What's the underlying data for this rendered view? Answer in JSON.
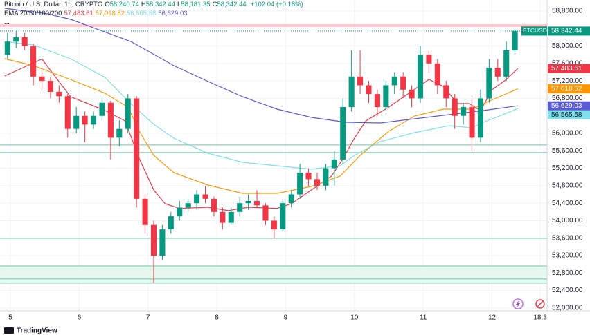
{
  "header": {
    "symbol": "Bitcoin / U.S. Dollar, 1h, CRYPTO",
    "ohlc": [
      {
        "key": "O",
        "value": "58,240.74"
      },
      {
        "key": "H",
        "value": "58,342.44"
      },
      {
        "key": "L",
        "value": "58,181.35"
      },
      {
        "key": "C",
        "value": "58,342.44"
      }
    ],
    "change": "+102.04 (+0.18%)",
    "indicator": "EMA 20/50/100/200",
    "more": "..."
  },
  "chart_data": {
    "type": "candlestick",
    "up_color": "#089981",
    "down_color": "#f23645",
    "grid": true,
    "symbol_label": "BTCUSD",
    "last_label": "58,342.44",
    "x": [
      -1,
      2,
      5,
      8,
      11,
      14,
      17,
      20,
      23,
      26,
      29,
      32,
      35,
      38,
      41,
      44,
      47,
      50,
      53,
      56,
      59,
      62,
      65,
      68,
      71,
      74,
      77,
      80,
      83,
      86,
      89,
      92,
      95,
      98,
      101,
      104,
      107,
      110,
      113,
      116,
      119,
      122,
      125,
      128,
      131,
      134,
      137,
      140,
      143,
      146,
      149,
      152,
      155,
      158,
      161,
      164,
      167,
      170,
      173,
      176
    ],
    "open": [
      57800,
      58100,
      58200,
      58000,
      57300,
      57200,
      56950,
      56850,
      56100,
      56400,
      56200,
      56400,
      56700,
      55900,
      56100,
      56800,
      54500,
      53900,
      53200,
      53800,
      54100,
      54300,
      54400,
      54600,
      54500,
      54200,
      53950,
      54200,
      54400,
      54450,
      54350,
      54000,
      53800,
      54400,
      54600,
      55100,
      54950,
      54800,
      55200,
      55400,
      56600,
      57300,
      57100,
      56900,
      56600,
      57100,
      57300,
      57000,
      56800,
      57800,
      57600,
      57100,
      56800,
      56400,
      56600,
      55900,
      56800,
      57500,
      57300,
      57900
    ],
    "high": [
      58300,
      58350,
      58300,
      58050,
      57450,
      57300,
      57100,
      56900,
      56600,
      56500,
      56500,
      56800,
      56750,
      56300,
      56900,
      56850,
      54600,
      54000,
      53900,
      54200,
      54450,
      54500,
      54700,
      54800,
      54550,
      54300,
      54300,
      54550,
      54600,
      54700,
      54400,
      54100,
      54500,
      54700,
      55300,
      55200,
      55100,
      55300,
      55600,
      56800,
      57900,
      57900,
      57200,
      57000,
      57200,
      57400,
      57400,
      57100,
      58000,
      57900,
      57700,
      57200,
      56900,
      56700,
      56800,
      57000,
      57700,
      57700,
      58100,
      58400
    ],
    "low": [
      57700,
      57950,
      57900,
      57100,
      57000,
      56800,
      56700,
      55900,
      56000,
      55800,
      56100,
      56300,
      55400,
      55700,
      56000,
      54300,
      53700,
      52570,
      53100,
      53700,
      54000,
      54200,
      54250,
      54400,
      54100,
      53800,
      53900,
      54100,
      54250,
      54300,
      53900,
      53600,
      53750,
      54300,
      54500,
      54800,
      54700,
      54700,
      54800,
      55300,
      56500,
      56900,
      56700,
      56400,
      56500,
      56900,
      56800,
      56600,
      56700,
      57400,
      56900,
      56600,
      56100,
      56200,
      55600,
      55800,
      56700,
      57200,
      57200,
      57800
    ],
    "close": [
      58100,
      58200,
      58000,
      57300,
      57200,
      56950,
      56850,
      56100,
      56400,
      56200,
      56400,
      56700,
      55900,
      56100,
      56800,
      54500,
      53900,
      53200,
      53800,
      54100,
      54300,
      54400,
      54600,
      54500,
      54200,
      53950,
      54200,
      54400,
      54450,
      54350,
      54000,
      53800,
      54400,
      54600,
      55100,
      54950,
      54800,
      55200,
      55400,
      56600,
      57300,
      57100,
      56900,
      56600,
      57100,
      57300,
      57000,
      56800,
      57800,
      57600,
      57100,
      56800,
      56400,
      56600,
      55900,
      56800,
      57500,
      57300,
      57900,
      58342.44
    ],
    "series": [
      {
        "color": "#f23645",
        "x": [
          -2,
          6,
          11,
          21,
          33,
          40,
          45,
          50,
          54,
          59,
          69,
          76,
          83,
          93,
          98,
          105,
          112,
          116,
          120,
          124,
          132,
          139,
          146,
          151,
          156,
          160,
          164,
          168,
          173,
          177
        ],
        "values": [
          57313,
          57550,
          57700,
          56839,
          56523,
          56285,
          55415,
          54703,
          54387,
          54280,
          54308,
          54230,
          54308,
          54280,
          54387,
          54703,
          55020,
          55415,
          55890,
          56285,
          56601,
          56918,
          57234,
          57076,
          56681,
          56681,
          56522,
          56997,
          57234,
          57483.61
        ],
        "last_label": "57,483.61"
      },
      {
        "color": "#ff9800",
        "x": [
          -2,
          8,
          21,
          33,
          41,
          45,
          50,
          57,
          69,
          81,
          93,
          105,
          115,
          122,
          132,
          141,
          151,
          161,
          165,
          177
        ],
        "values": [
          57709,
          57550,
          57234,
          56918,
          56601,
          56048,
          55494,
          55099,
          54814,
          54624,
          54624,
          54783,
          55020,
          55494,
          56048,
          56396,
          56554,
          56554,
          56681,
          57018.52
        ],
        "last_label": "57,018.52"
      },
      {
        "color": "#7ee0ec",
        "x": [
          -2,
          8,
          21,
          33,
          42,
          50,
          57,
          69,
          81,
          93,
          105,
          115,
          120,
          129,
          141,
          153,
          161,
          165,
          177
        ],
        "values": [
          58104,
          58025,
          57709,
          57282,
          56680,
          56206,
          55890,
          55542,
          55336,
          55257,
          55178,
          55257,
          55494,
          55810,
          56016,
          56174,
          56127,
          56253,
          56565.58
        ],
        "last_label": "56,565.58"
      },
      {
        "color": "#5b5bd6",
        "x": [
          -2,
          13,
          21,
          42,
          57,
          69,
          81,
          93,
          105,
          117,
          129,
          141,
          153,
          165,
          177
        ],
        "values": [
          58863,
          58737,
          58610,
          58104,
          57550,
          57187,
          56839,
          56554,
          56364,
          56253,
          56238,
          56333,
          56428,
          56522,
          56629.03
        ],
        "last_label": "56,629.03"
      }
    ],
    "hlines": [
      {
        "value": 58484,
        "color": "#f7a1a8"
      },
      {
        "value": 58455,
        "color": "#f23645"
      },
      {
        "value": 55733,
        "color": "#66c9a8"
      },
      {
        "value": 55560,
        "color": "#66c9a8"
      },
      {
        "value": 53596,
        "color": "#66c9a8"
      },
      {
        "value": 52964,
        "color": "#66c9a8"
      },
      {
        "value": 52664,
        "color": "#66c9a8"
      },
      {
        "value": 52570,
        "color": "#66c9a8"
      }
    ],
    "zone": {
      "values": [
        52570,
        52964
      ],
      "color": "#e6f7ee"
    },
    "xlim": [
      -3.62,
      187.2
    ],
    "ylim": [
      51935,
      59053
    ],
    "xticks": [
      {
        "value": 0,
        "label": "5"
      },
      {
        "value": 24,
        "label": "6"
      },
      {
        "value": 48,
        "label": "7"
      },
      {
        "value": 72,
        "label": "8"
      },
      {
        "value": 96,
        "label": "9"
      },
      {
        "value": 120,
        "label": "10"
      },
      {
        "value": 144,
        "label": "11"
      },
      {
        "value": 168,
        "label": "12"
      },
      {
        "value": 184.8,
        "label": "18:3"
      }
    ],
    "yticks": [
      {
        "value": 58800,
        "label": "58,800.00"
      },
      {
        "value": 58000,
        "label": "58,000.00"
      },
      {
        "value": 57600,
        "label": "57,600.00"
      },
      {
        "value": 57200,
        "label": "57,200.00"
      },
      {
        "value": 56800,
        "label": "56,800.00"
      },
      {
        "value": 56000,
        "label": "56,000.00"
      },
      {
        "value": 55600,
        "label": "55,600.00"
      },
      {
        "value": 55200,
        "label": "55,200.00"
      },
      {
        "value": 54800,
        "label": "54,800.00"
      },
      {
        "value": 54400,
        "label": "54,400.00"
      },
      {
        "value": 54000,
        "label": "54,000.00"
      },
      {
        "value": 53600,
        "label": "53,600.00"
      },
      {
        "value": 53200,
        "label": "53,200.00"
      },
      {
        "value": 52800,
        "label": "52,800.00"
      },
      {
        "value": 52400,
        "label": "52,400.00"
      },
      {
        "value": 52000,
        "label": "52,000.00"
      }
    ]
  },
  "footer": {
    "logo": "TradingView"
  }
}
